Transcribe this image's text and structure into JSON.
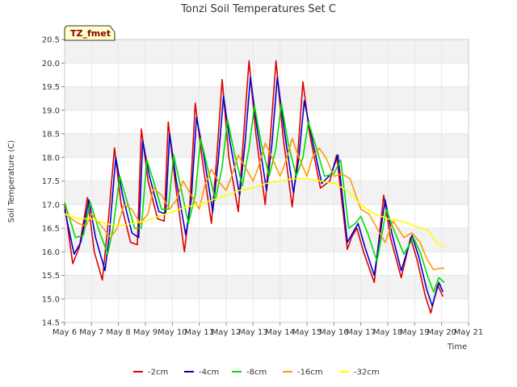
{
  "chart_data": {
    "type": "line",
    "title": "Tonzi Soil Temperatures Set C",
    "xlabel": "Time",
    "ylabel": "Soil Temperature (C)",
    "site_tag": "TZ_fmet",
    "xlim": [
      6,
      21
    ],
    "ylim": [
      14.5,
      20.5
    ],
    "x_ticks": [
      {
        "value": 6,
        "label": "May 6"
      },
      {
        "value": 7,
        "label": "May 7"
      },
      {
        "value": 8,
        "label": "May 8"
      },
      {
        "value": 9,
        "label": "May 9"
      },
      {
        "value": 10,
        "label": "May 10"
      },
      {
        "value": 11,
        "label": "May 11"
      },
      {
        "value": 12,
        "label": "May 12"
      },
      {
        "value": 13,
        "label": "May 13"
      },
      {
        "value": 14,
        "label": "May 14"
      },
      {
        "value": 15,
        "label": "May 15"
      },
      {
        "value": 16,
        "label": "May 16"
      },
      {
        "value": 17,
        "label": "May 17"
      },
      {
        "value": 18,
        "label": "May 18"
      },
      {
        "value": 19,
        "label": "May 19"
      },
      {
        "value": 20,
        "label": "May 20"
      },
      {
        "value": 21,
        "label": "May 21"
      }
    ],
    "y_ticks": [
      {
        "value": 14.5,
        "label": "14.5"
      },
      {
        "value": 15.0,
        "label": "15.0"
      },
      {
        "value": 15.5,
        "label": "15.5"
      },
      {
        "value": 16.0,
        "label": "16.0"
      },
      {
        "value": 16.5,
        "label": "16.5"
      },
      {
        "value": 17.0,
        "label": "17.0"
      },
      {
        "value": 17.5,
        "label": "17.5"
      },
      {
        "value": 18.0,
        "label": "18.0"
      },
      {
        "value": 18.5,
        "label": "18.5"
      },
      {
        "value": 19.0,
        "label": "19.0"
      },
      {
        "value": 19.5,
        "label": "19.5"
      },
      {
        "value": 20.0,
        "label": "20.0"
      },
      {
        "value": 20.5,
        "label": "20.5"
      }
    ],
    "grid": true,
    "legend_position": "bottom",
    "series": [
      {
        "name": "-2cm",
        "color": "#dd0000",
        "x": [
          6.0,
          6.3,
          6.55,
          6.85,
          7.1,
          7.4,
          7.6,
          7.85,
          8.1,
          8.45,
          8.7,
          8.85,
          9.1,
          9.45,
          9.7,
          9.85,
          10.1,
          10.45,
          10.65,
          10.85,
          11.1,
          11.45,
          11.65,
          11.85,
          12.1,
          12.45,
          12.65,
          12.85,
          13.1,
          13.45,
          13.65,
          13.85,
          14.1,
          14.45,
          14.65,
          14.85,
          15.1,
          15.5,
          15.85,
          16.1,
          16.5,
          16.65,
          16.85,
          17.1,
          17.5,
          17.85,
          18.1,
          18.5,
          18.85,
          19.1,
          19.4,
          19.6,
          19.85,
          20.05
        ],
        "y": [
          17.0,
          15.75,
          16.1,
          17.15,
          16.0,
          15.4,
          16.5,
          18.2,
          17.0,
          16.2,
          16.15,
          18.6,
          17.5,
          16.7,
          16.65,
          18.75,
          17.5,
          16.0,
          17.0,
          19.15,
          18.0,
          16.6,
          18.0,
          19.65,
          18.0,
          16.85,
          18.5,
          20.05,
          18.5,
          17.0,
          18.5,
          20.05,
          18.5,
          16.95,
          18.0,
          19.6,
          18.5,
          17.35,
          17.5,
          18.05,
          16.05,
          16.3,
          16.5,
          16.0,
          15.35,
          17.2,
          16.3,
          15.45,
          16.3,
          15.8,
          15.05,
          14.7,
          15.3,
          15.05
        ]
      },
      {
        "name": "-4cm",
        "color": "#0000cc",
        "x": [
          6.0,
          6.35,
          6.6,
          6.9,
          7.15,
          7.5,
          7.65,
          7.9,
          8.15,
          8.5,
          8.75,
          8.9,
          9.15,
          9.5,
          9.75,
          9.9,
          10.15,
          10.5,
          10.7,
          10.9,
          11.15,
          11.5,
          11.7,
          11.9,
          12.15,
          12.5,
          12.7,
          12.9,
          13.15,
          13.5,
          13.7,
          13.9,
          14.15,
          14.5,
          14.7,
          14.9,
          15.15,
          15.55,
          15.9,
          16.15,
          16.5,
          16.7,
          16.9,
          17.15,
          17.5,
          17.9,
          18.15,
          18.5,
          18.9,
          19.15,
          19.45,
          19.65,
          19.9,
          20.05
        ],
        "y": [
          16.9,
          15.95,
          16.2,
          17.1,
          16.3,
          15.6,
          16.3,
          18.0,
          17.2,
          16.4,
          16.3,
          18.35,
          17.6,
          16.85,
          16.8,
          18.5,
          17.5,
          16.35,
          17.1,
          18.85,
          18.1,
          16.85,
          17.9,
          19.3,
          18.3,
          17.2,
          18.3,
          19.7,
          18.6,
          17.3,
          18.3,
          19.7,
          18.6,
          17.25,
          18.0,
          19.2,
          18.5,
          17.45,
          17.65,
          18.05,
          16.2,
          16.4,
          16.6,
          16.1,
          15.5,
          17.1,
          16.4,
          15.6,
          16.35,
          15.9,
          15.2,
          14.85,
          15.35,
          15.15
        ]
      },
      {
        "name": "-8cm",
        "color": "#00dd00",
        "x": [
          6.0,
          6.4,
          6.7,
          6.95,
          7.25,
          7.6,
          7.8,
          8.05,
          8.3,
          8.6,
          8.85,
          9.05,
          9.3,
          9.6,
          9.85,
          10.05,
          10.3,
          10.6,
          10.85,
          11.05,
          11.3,
          11.6,
          11.85,
          12.05,
          12.3,
          12.6,
          12.85,
          13.05,
          13.3,
          13.6,
          13.85,
          14.05,
          14.3,
          14.6,
          14.85,
          15.05,
          15.3,
          15.65,
          16.0,
          16.25,
          16.55,
          16.8,
          17.0,
          17.25,
          17.6,
          17.95,
          18.2,
          18.6,
          18.95,
          19.2,
          19.5,
          19.7,
          19.9,
          20.1
        ],
        "y": [
          17.05,
          16.3,
          16.35,
          17.05,
          16.5,
          15.95,
          16.5,
          17.6,
          17.1,
          16.5,
          16.5,
          17.95,
          17.5,
          16.9,
          16.9,
          18.05,
          17.4,
          16.6,
          17.2,
          18.4,
          17.8,
          17.1,
          17.8,
          18.8,
          18.1,
          17.4,
          18.2,
          19.1,
          18.3,
          17.6,
          18.2,
          19.15,
          18.3,
          17.6,
          18.0,
          18.75,
          18.3,
          17.6,
          17.65,
          17.95,
          16.5,
          16.6,
          16.75,
          16.4,
          15.8,
          16.9,
          16.5,
          15.95,
          16.3,
          16.0,
          15.45,
          15.15,
          15.45,
          15.35
        ]
      },
      {
        "name": "-16cm",
        "color": "#ff9900",
        "x": [
          6.0,
          6.5,
          6.8,
          7.0,
          7.3,
          7.7,
          7.95,
          8.2,
          8.5,
          8.8,
          9.1,
          9.3,
          9.6,
          9.9,
          10.15,
          10.4,
          10.7,
          11.0,
          11.2,
          11.45,
          11.7,
          12.0,
          12.2,
          12.45,
          12.7,
          13.0,
          13.2,
          13.45,
          13.7,
          14.0,
          14.2,
          14.45,
          14.7,
          15.0,
          15.2,
          15.45,
          15.7,
          16.0,
          16.3,
          16.6,
          17.0,
          17.3,
          17.6,
          17.9,
          18.2,
          18.6,
          18.9,
          19.2,
          19.45,
          19.7,
          19.95,
          20.1
        ],
        "y": [
          16.8,
          16.6,
          16.55,
          16.8,
          16.6,
          16.3,
          16.5,
          17.0,
          16.9,
          16.6,
          16.8,
          17.35,
          17.2,
          16.9,
          17.1,
          17.5,
          17.2,
          16.9,
          17.4,
          17.75,
          17.5,
          17.3,
          17.6,
          18.05,
          17.8,
          17.5,
          17.8,
          18.3,
          18.0,
          17.6,
          17.9,
          18.4,
          18.0,
          17.6,
          18.0,
          18.2,
          18.0,
          17.6,
          17.65,
          17.55,
          16.9,
          16.8,
          16.5,
          16.2,
          16.65,
          16.3,
          16.4,
          16.2,
          15.85,
          15.62,
          15.65,
          15.65
        ]
      },
      {
        "name": "-32cm",
        "color": "#ffff00",
        "x": [
          6.0,
          6.5,
          7.0,
          7.5,
          8.0,
          8.5,
          9.0,
          9.5,
          10.0,
          10.5,
          11.0,
          11.5,
          12.0,
          12.5,
          13.0,
          13.5,
          14.0,
          14.5,
          15.0,
          15.5,
          16.0,
          16.5,
          17.0,
          17.5,
          18.0,
          18.5,
          19.0,
          19.5,
          19.8,
          20.1
        ],
        "y": [
          16.8,
          16.7,
          16.7,
          16.6,
          16.55,
          16.6,
          16.65,
          16.75,
          16.85,
          16.95,
          17.0,
          17.1,
          17.2,
          17.3,
          17.35,
          17.45,
          17.5,
          17.55,
          17.55,
          17.5,
          17.45,
          17.3,
          17.0,
          16.8,
          16.7,
          16.65,
          16.55,
          16.45,
          16.2,
          16.1
        ]
      }
    ]
  }
}
